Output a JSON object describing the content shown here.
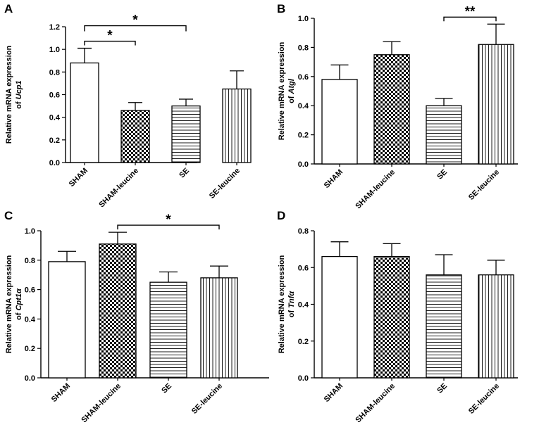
{
  "colors": {
    "ink": "#000000",
    "paper": "#ffffff"
  },
  "chart_data": [
    {
      "type": "bar",
      "panel": "A",
      "ylabel_line1": "Relative mRNA expression",
      "ylabel_prefix": "of",
      "ylabel_gene": "Ucp1",
      "ylim": [
        0,
        1.2
      ],
      "yticks": [
        "0.0",
        "0.2",
        "0.4",
        "0.6",
        "0.8",
        "1.0",
        "1.2"
      ],
      "ytick_values": [
        0,
        0.2,
        0.4,
        0.6,
        0.8,
        1.0,
        1.2
      ],
      "categories": [
        "SHAM",
        "SHAM-leucine",
        "SE",
        "SE-leucine"
      ],
      "patterns": [
        "none",
        "checker",
        "hlines",
        "vlines"
      ],
      "values": [
        0.88,
        0.46,
        0.5,
        0.65
      ],
      "errors": [
        0.13,
        0.07,
        0.06,
        0.16
      ],
      "significance": [
        {
          "from": 0,
          "to": 1,
          "label": "*",
          "level": 0
        },
        {
          "from": 0,
          "to": 2,
          "label": "*",
          "level": 1
        }
      ]
    },
    {
      "type": "bar",
      "panel": "B",
      "ylabel_line1": "Relative mRNA expression",
      "ylabel_prefix": "of",
      "ylabel_gene": "Atgl",
      "ylim": [
        0,
        1.0
      ],
      "yticks": [
        "0.0",
        "0.2",
        "0.4",
        "0.6",
        "0.8",
        "1.0"
      ],
      "ytick_values": [
        0,
        0.2,
        0.4,
        0.6,
        0.8,
        1.0
      ],
      "categories": [
        "SHAM",
        "SHAM-leucine",
        "SE",
        "SE-leucine"
      ],
      "patterns": [
        "none",
        "checker",
        "hlines",
        "vlines"
      ],
      "values": [
        0.58,
        0.75,
        0.4,
        0.82
      ],
      "errors": [
        0.1,
        0.09,
        0.05,
        0.14
      ],
      "significance": [
        {
          "from": 2,
          "to": 3,
          "label": "**",
          "level": 0
        }
      ]
    },
    {
      "type": "bar",
      "panel": "C",
      "ylabel_line1": "Relative mRNA expression",
      "ylabel_prefix": "of",
      "ylabel_gene": "Cpt1α",
      "ylim": [
        0,
        1.0
      ],
      "yticks": [
        "0.0",
        "0.2",
        "0.4",
        "0.6",
        "0.8",
        "1.0"
      ],
      "ytick_values": [
        0,
        0.2,
        0.4,
        0.6,
        0.8,
        1.0
      ],
      "categories": [
        "SHAM",
        "SHAM-leucine",
        "SE",
        "SE-leucine"
      ],
      "patterns": [
        "none",
        "checker",
        "hlines",
        "vlines"
      ],
      "values": [
        0.79,
        0.91,
        0.65,
        0.68
      ],
      "errors": [
        0.07,
        0.08,
        0.07,
        0.08
      ],
      "significance": [
        {
          "from": 1,
          "to": 3,
          "label": "*",
          "level": 0
        }
      ]
    },
    {
      "type": "bar",
      "panel": "D",
      "ylabel_line1": "Relative mRNA expression",
      "ylabel_prefix": "of",
      "ylabel_gene": "Tnfα",
      "ylim": [
        0,
        0.8
      ],
      "yticks": [
        "0.0",
        "0.2",
        "0.4",
        "0.6",
        "0.8"
      ],
      "ytick_values": [
        0,
        0.2,
        0.4,
        0.6,
        0.8
      ],
      "categories": [
        "SHAM",
        "SHAM-leucine",
        "SE",
        "SE-leucine"
      ],
      "patterns": [
        "none",
        "checker",
        "hlines",
        "vlines"
      ],
      "values": [
        0.66,
        0.66,
        0.56,
        0.56
      ],
      "errors": [
        0.08,
        0.07,
        0.11,
        0.08
      ],
      "significance": []
    }
  ]
}
